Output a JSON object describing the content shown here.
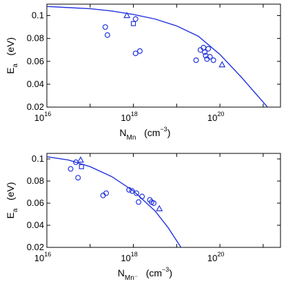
{
  "colors": {
    "series": "#2233dd",
    "axis": "#000000"
  },
  "chart_data": [
    {
      "type": "scatter",
      "xlabel": {
        "main": "N",
        "sub": "Mn",
        "unit": "(cm",
        "unit_exp": "−3",
        "unit_close": ")"
      },
      "ylabel": {
        "main": "E",
        "sub": "a",
        "unit": "(eV)"
      },
      "xscale": "log",
      "xlim_exp": [
        16,
        21.4
      ],
      "ylim": [
        0.02,
        0.11
      ],
      "x_ticks": [
        {
          "base": "10",
          "exp": "16",
          "value_exp": 16
        },
        {
          "base": "10",
          "exp": "18",
          "value_exp": 18
        },
        {
          "base": "10",
          "exp": "20",
          "value_exp": 20
        }
      ],
      "y_ticks": [
        {
          "label": "0.02",
          "value": 0.02
        },
        {
          "label": "0.04",
          "value": 0.04
        },
        {
          "label": "0.06",
          "value": 0.06
        },
        {
          "label": "0.08",
          "value": 0.08
        },
        {
          "label": "0.1",
          "value": 0.1
        }
      ],
      "series": [
        {
          "marker": "circle",
          "points": [
            [
              17.35,
              0.09
            ],
            [
              17.4,
              0.083
            ],
            [
              18.05,
              0.097
            ],
            [
              18.05,
              0.067
            ],
            [
              18.15,
              0.069
            ],
            [
              19.45,
              0.061
            ],
            [
              19.55,
              0.07
            ],
            [
              19.62,
              0.072
            ],
            [
              19.65,
              0.068
            ],
            [
              19.67,
              0.065
            ],
            [
              19.7,
              0.062
            ],
            [
              19.73,
              0.071
            ],
            [
              19.77,
              0.064
            ],
            [
              19.85,
              0.061
            ]
          ]
        },
        {
          "marker": "square",
          "points": [
            [
              18.0,
              0.093
            ]
          ]
        },
        {
          "marker": "triangle",
          "points": [
            [
              17.85,
              0.1
            ],
            [
              20.05,
              0.057
            ]
          ]
        }
      ],
      "fit_curve": [
        [
          16.0,
          0.108
        ],
        [
          16.5,
          0.107
        ],
        [
          17.0,
          0.106
        ],
        [
          17.5,
          0.104
        ],
        [
          18.0,
          0.101
        ],
        [
          18.5,
          0.097
        ],
        [
          19.0,
          0.091
        ],
        [
          19.5,
          0.082
        ],
        [
          20.0,
          0.066
        ],
        [
          20.5,
          0.046
        ],
        [
          20.8,
          0.033
        ],
        [
          21.1,
          0.02
        ]
      ]
    },
    {
      "type": "scatter",
      "xlabel": {
        "main": "N",
        "sub": "Mn⁻",
        "unit": "(cm",
        "unit_exp": "−3",
        "unit_close": ")"
      },
      "ylabel": {
        "main": "E",
        "sub": "a",
        "unit": "(eV)"
      },
      "xscale": "log",
      "xlim_exp": [
        16,
        21.4
      ],
      "ylim": [
        0.02,
        0.105
      ],
      "x_ticks": [
        {
          "base": "10",
          "exp": "16",
          "value_exp": 16
        },
        {
          "base": "10",
          "exp": "18",
          "value_exp": 18
        },
        {
          "base": "10",
          "exp": "20",
          "value_exp": 20
        }
      ],
      "y_ticks": [
        {
          "label": "0.02",
          "value": 0.02
        },
        {
          "label": "0.04",
          "value": 0.04
        },
        {
          "label": "0.06",
          "value": 0.06
        },
        {
          "label": "0.08",
          "value": 0.08
        },
        {
          "label": "0.1",
          "value": 0.1
        }
      ],
      "series": [
        {
          "marker": "circle",
          "points": [
            [
              16.55,
              0.091
            ],
            [
              16.67,
              0.097
            ],
            [
              16.72,
              0.083
            ],
            [
              17.3,
              0.067
            ],
            [
              17.37,
              0.069
            ],
            [
              17.9,
              0.072
            ],
            [
              17.97,
              0.071
            ],
            [
              18.07,
              0.069
            ],
            [
              18.12,
              0.061
            ],
            [
              18.2,
              0.066
            ],
            [
              18.38,
              0.063
            ],
            [
              18.42,
              0.061
            ],
            [
              18.47,
              0.06
            ]
          ]
        },
        {
          "marker": "square",
          "points": [
            [
              16.8,
              0.093
            ]
          ]
        },
        {
          "marker": "triangle",
          "points": [
            [
              16.78,
              0.099
            ],
            [
              18.6,
              0.055
            ]
          ]
        }
      ],
      "fit_curve": [
        [
          16.0,
          0.102
        ],
        [
          16.5,
          0.099
        ],
        [
          17.0,
          0.093
        ],
        [
          17.5,
          0.084
        ],
        [
          18.0,
          0.071
        ],
        [
          18.5,
          0.053
        ],
        [
          18.8,
          0.038
        ],
        [
          19.1,
          0.02
        ]
      ]
    }
  ]
}
